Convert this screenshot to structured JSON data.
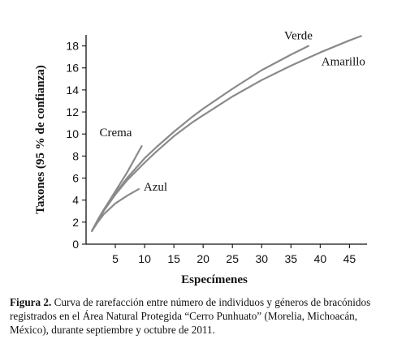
{
  "chart_data": {
    "type": "line",
    "ylabel": "Taxones (95 % de confianza)",
    "xlabel": "Especímenes",
    "xlim": [
      0,
      48
    ],
    "ylim": [
      0,
      19
    ],
    "xticks": [
      5,
      10,
      15,
      20,
      25,
      30,
      35,
      40,
      45
    ],
    "yticks": [
      0,
      2,
      4,
      6,
      8,
      10,
      12,
      14,
      16,
      18
    ],
    "grid": false,
    "series": [
      {
        "name": "Verde",
        "color": "#8a8a8a",
        "x": [
          1,
          2,
          3,
          5,
          7,
          10,
          12,
          15,
          18,
          20,
          25,
          30,
          35,
          38
        ],
        "y": [
          1.2,
          2.2,
          3.1,
          4.6,
          6.0,
          7.8,
          8.8,
          10.2,
          11.5,
          12.3,
          14.1,
          15.8,
          17.2,
          18.0
        ]
      },
      {
        "name": "Amarillo",
        "color": "#8a8a8a",
        "x": [
          1,
          2,
          3,
          5,
          7,
          10,
          12,
          15,
          18,
          20,
          25,
          30,
          35,
          40,
          45,
          47
        ],
        "y": [
          1.2,
          2.1,
          3.0,
          4.5,
          5.8,
          7.4,
          8.4,
          9.8,
          11.0,
          11.7,
          13.4,
          14.9,
          16.2,
          17.4,
          18.5,
          18.9
        ]
      },
      {
        "name": "Crema",
        "color": "#8a8a8a",
        "x": [
          1,
          2,
          3,
          5,
          7,
          9.5
        ],
        "y": [
          1.2,
          2.2,
          3.1,
          4.8,
          6.5,
          8.9
        ]
      },
      {
        "name": "Azul",
        "color": "#8a8a8a",
        "x": [
          1,
          2,
          3,
          5,
          7,
          9
        ],
        "y": [
          1.2,
          2.0,
          2.7,
          3.7,
          4.4,
          5.0
        ]
      }
    ]
  },
  "caption": {
    "label": "Figura 2.",
    "text": " Curva de rarefacción entre número de individuos y géneros de bracónidos registrados en el Área Natural Protegida “Cerro Punhuato” (Morelia, Michoacán, México), durante septiembre y octubre de 2011."
  }
}
